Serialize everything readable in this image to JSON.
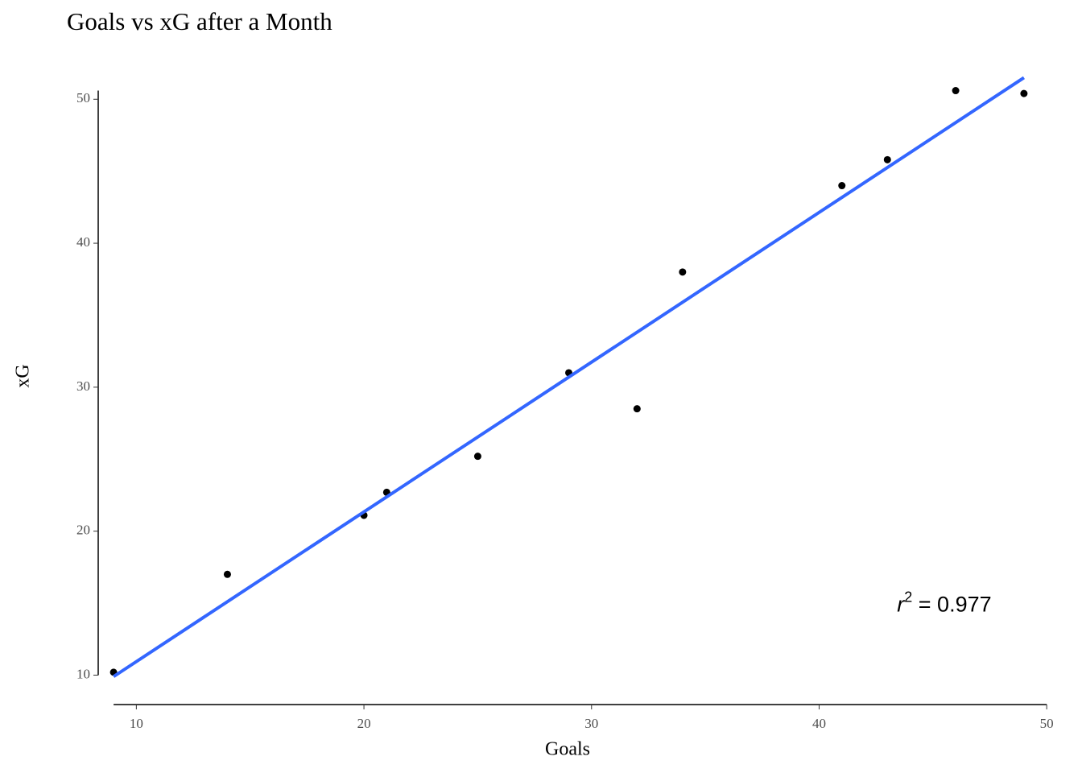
{
  "chart_data": {
    "type": "scatter",
    "title": "Goals vs xG after a Month",
    "x_label": "Goals",
    "y_label": "xG",
    "x": [
      9,
      14,
      20,
      21,
      25,
      29,
      32,
      34,
      41,
      43,
      46,
      49
    ],
    "y": [
      10.2,
      17.0,
      21.1,
      22.7,
      25.2,
      31.0,
      28.5,
      38.0,
      44.0,
      45.8,
      50.6,
      50.4
    ],
    "color": "#000000",
    "fit": {
      "x": [
        9,
        49
      ],
      "y": [
        9.9,
        51.5
      ],
      "color": "#3366ff"
    },
    "annotation": {
      "symbol": "r",
      "exponent": "2",
      "text": " = 0.977",
      "x": 45.5,
      "y": 14.8
    },
    "xlim": [
      7.9,
      50.1
    ],
    "ylim": [
      7.9,
      52.7
    ],
    "xticks": [
      10,
      20,
      30,
      40,
      50
    ],
    "yticks": [
      10,
      20,
      30,
      40,
      50
    ],
    "grid": false
  }
}
